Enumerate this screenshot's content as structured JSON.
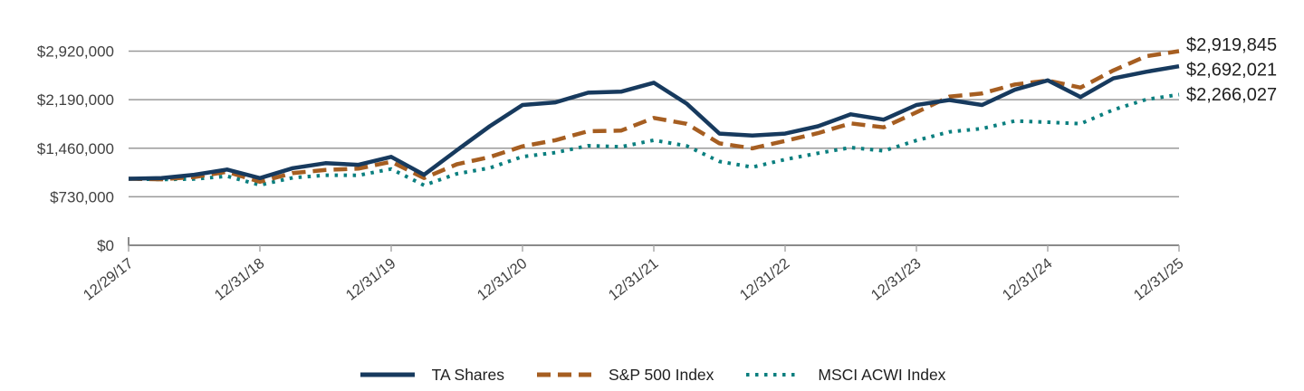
{
  "chart_data": {
    "type": "line",
    "title": "",
    "grid": "horizontal",
    "legend_position": "bottom",
    "x_tick_labels": [
      "12/29/17",
      "12/31/18",
      "12/31/19",
      "12/31/20",
      "12/31/21",
      "12/31/22",
      "12/31/23",
      "12/31/24",
      "12/31/25"
    ],
    "y_tick_labels": [
      "$0",
      "$730,000",
      "$1,460,000",
      "$2,190,000",
      "$2,920,000"
    ],
    "y_tick_values": [
      0,
      730000,
      1460000,
      2190000,
      2920000
    ],
    "ylim": [
      0,
      2920000
    ],
    "points_per_year": 4,
    "grid_color": "#9a9a9a",
    "axis_color": "#8a8a8a",
    "tick_color": "#ababab",
    "axis_label_color": "#414141",
    "value_label_color": "#1f1f1f",
    "series": [
      {
        "name": "TA Shares",
        "style": "solid",
        "color": "#173a5e",
        "final_value": 2692021,
        "final_label": "$2,692,021",
        "values": [
          1000000,
          1010000,
          1060000,
          1140000,
          1010000,
          1160000,
          1235000,
          1210000,
          1330000,
          1060000,
          1430000,
          1790000,
          2110000,
          2150000,
          2295000,
          2310000,
          2445000,
          2130000,
          1680000,
          1650000,
          1680000,
          1790000,
          1970000,
          1890000,
          2110000,
          2185000,
          2110000,
          2340000,
          2480000,
          2230000,
          2510000,
          2610000,
          2692021
        ]
      },
      {
        "name": "S&P 500 Index",
        "style": "dashed",
        "color": "#a65e21",
        "final_value": 2919845,
        "final_label": "$2,919,845",
        "values": [
          1000000,
          992000,
          1026000,
          1106000,
          956000,
          1087000,
          1133000,
          1153000,
          1257000,
          1011000,
          1218000,
          1327000,
          1488000,
          1580000,
          1715000,
          1725000,
          1916000,
          1827000,
          1533000,
          1458000,
          1569000,
          1686000,
          1834000,
          1774000,
          2000000,
          2235000,
          2284000,
          2419000,
          2477000,
          2371000,
          2630000,
          2844000,
          2919845
        ]
      },
      {
        "name": "MSCI ACWI Index",
        "style": "dotted",
        "color": "#0a7f7f",
        "final_value": 2266027,
        "final_label": "$2,266,027",
        "values": [
          1000000,
          990000,
          996000,
          1038000,
          906000,
          1016000,
          1053000,
          1052000,
          1147000,
          902000,
          1075000,
          1162000,
          1333000,
          1394000,
          1497000,
          1481000,
          1580000,
          1495000,
          1261000,
          1175000,
          1290000,
          1384000,
          1470000,
          1420000,
          1576000,
          1706000,
          1755000,
          1871000,
          1852000,
          1828000,
          2038000,
          2193000,
          2266027
        ]
      }
    ]
  }
}
